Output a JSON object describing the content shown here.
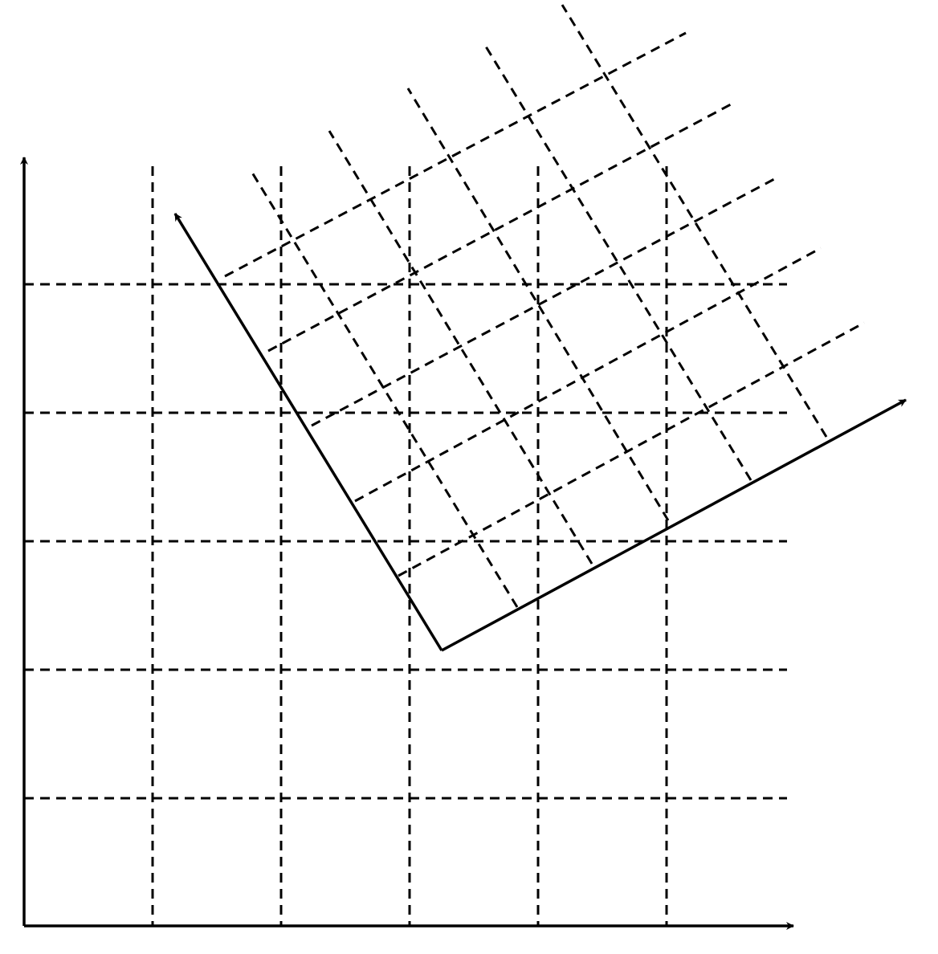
{
  "diagram": {
    "kind": "coordinate-grids",
    "stroke_color": "#000000",
    "background_color": "#ffffff",
    "base_frame": {
      "axes": [
        "x-axis",
        "y-axis"
      ],
      "grid_lines": {
        "vertical_count": 5,
        "horizontal_count": 5
      },
      "grid_style": "dashed"
    },
    "rotated_frame": {
      "axes": [
        "u-axis",
        "v-axis"
      ],
      "rotation_degrees": 30,
      "grid_lines": {
        "lines_parallel_to_u": 5,
        "lines_parallel_to_v": 5
      },
      "grid_style": "dashed"
    }
  }
}
